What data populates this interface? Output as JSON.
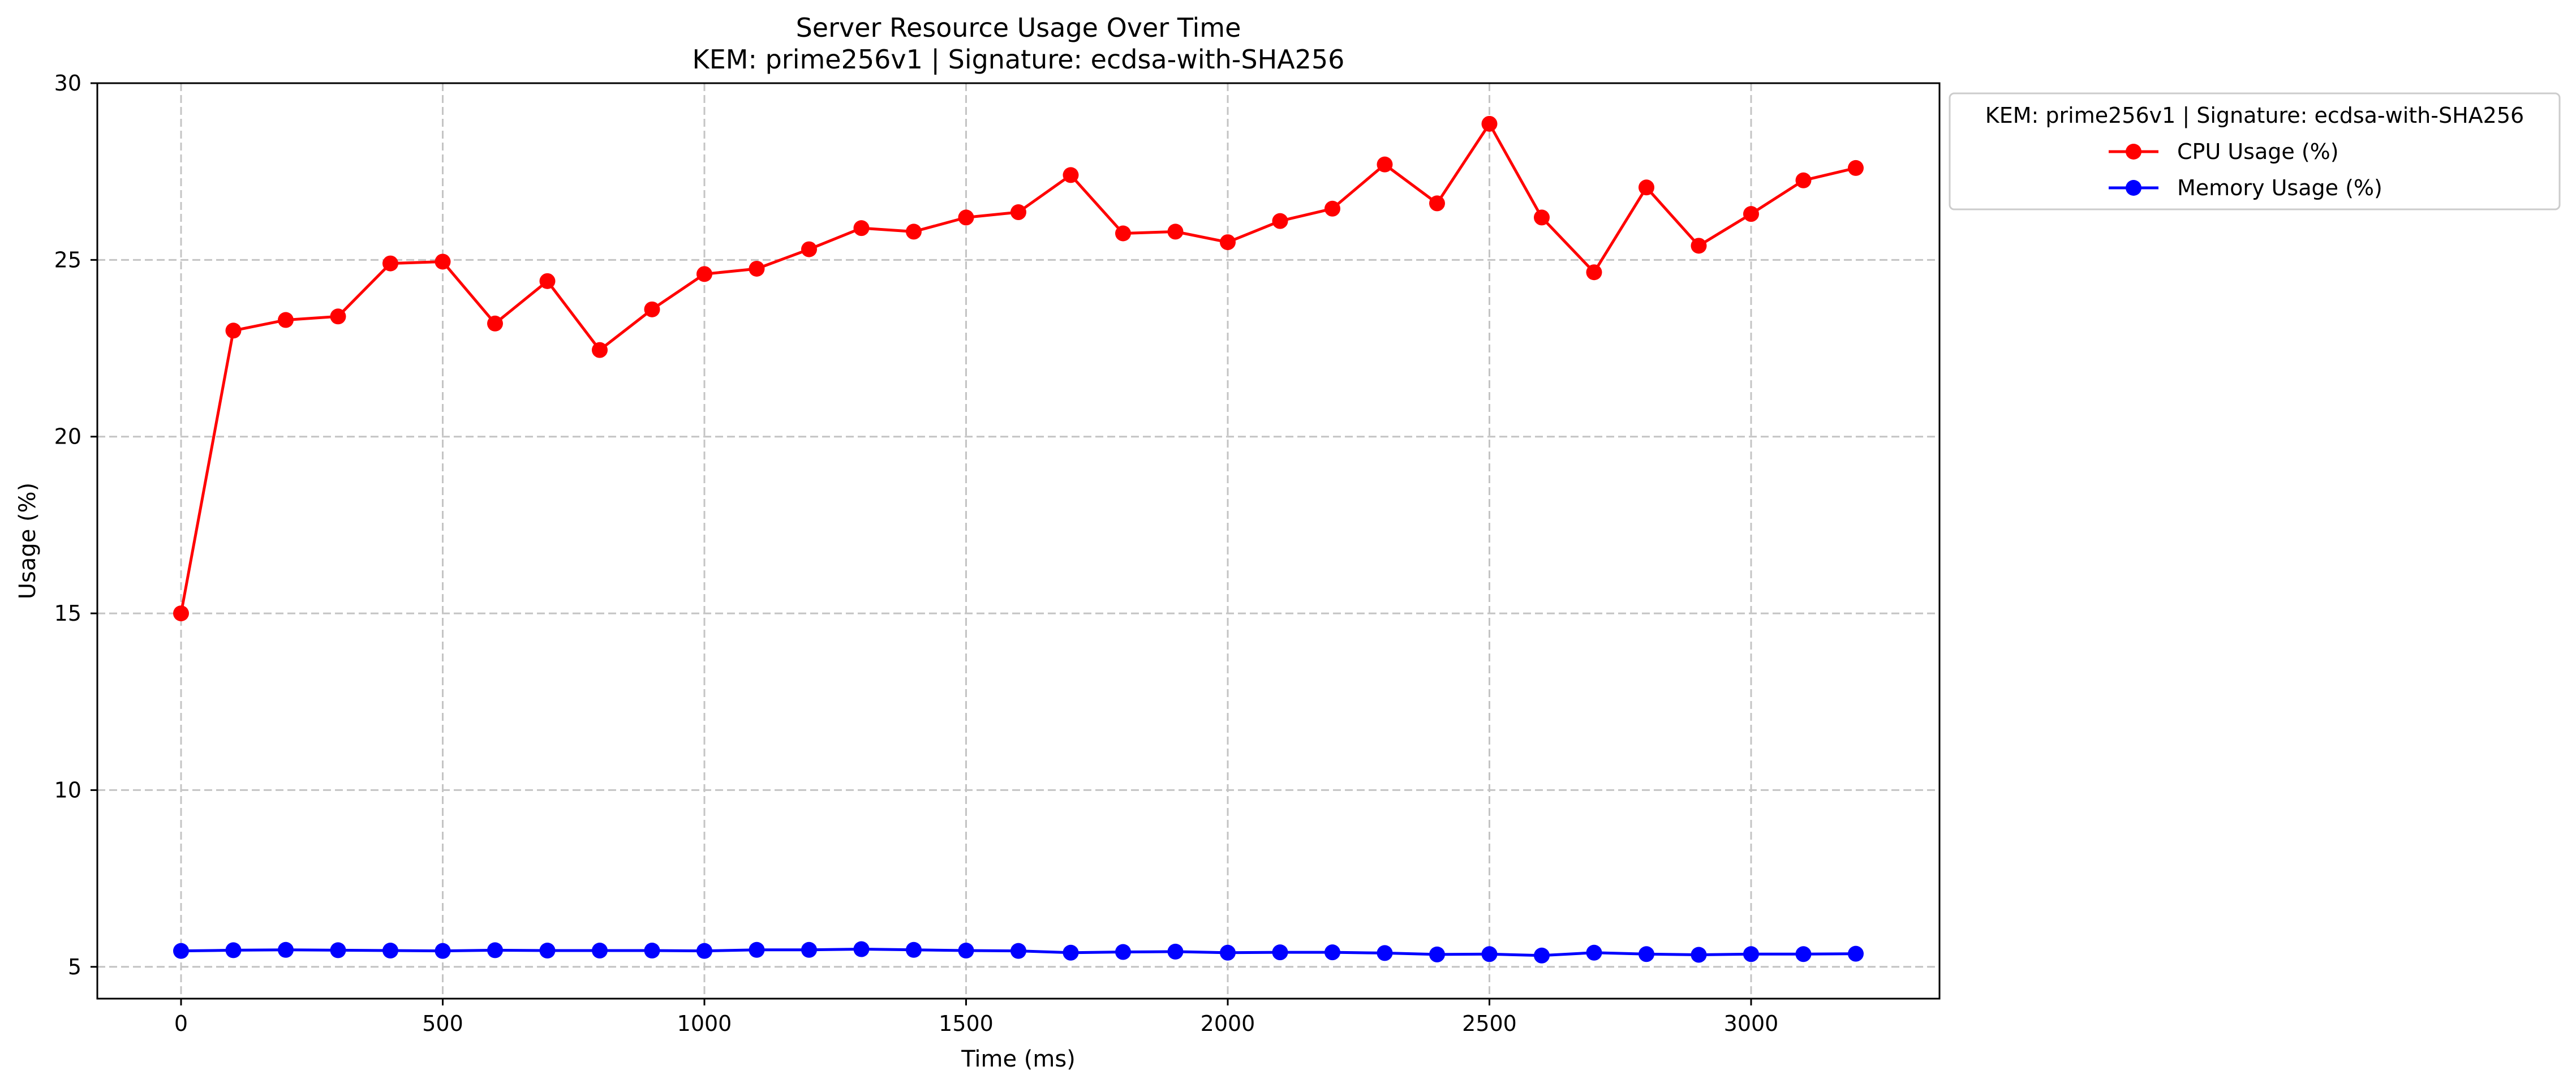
{
  "chart_data": {
    "type": "line",
    "title": "Server Resource Usage Over Time",
    "subtitle": "KEM: prime256v1 | Signature: ecdsa-with-SHA256",
    "xlabel": "Time (ms)",
    "ylabel": "Usage (%)",
    "xlim": [
      -160,
      3360
    ],
    "ylim": [
      4.1,
      30
    ],
    "xticks": [
      0,
      500,
      1000,
      1500,
      2000,
      2500,
      3000
    ],
    "yticks": [
      5,
      10,
      15,
      20,
      25,
      30
    ],
    "grid": true,
    "legend": {
      "title": "KEM: prime256v1 | Signature: ecdsa-with-SHA256",
      "placement": "outside-top-right"
    },
    "x": [
      0,
      100,
      200,
      300,
      400,
      500,
      600,
      700,
      800,
      900,
      1000,
      1100,
      1200,
      1300,
      1400,
      1500,
      1600,
      1700,
      1800,
      1900,
      2000,
      2100,
      2200,
      2300,
      2400,
      2500,
      2600,
      2700,
      2800,
      2900,
      3000,
      3100,
      3200
    ],
    "series": [
      {
        "name": "CPU Usage (%)",
        "color": "#ff0000",
        "marker": "circle",
        "values": [
          15.0,
          23.0,
          23.3,
          23.4,
          24.9,
          24.95,
          23.2,
          24.4,
          22.45,
          23.6,
          24.6,
          24.75,
          25.3,
          25.9,
          25.8,
          26.2,
          26.35,
          27.4,
          25.75,
          25.8,
          25.5,
          26.1,
          26.45,
          27.7,
          26.6,
          28.85,
          26.2,
          24.65,
          27.05,
          25.4,
          26.3,
          27.25,
          27.6
        ]
      },
      {
        "name": "Memory Usage (%)",
        "color": "#0000ff",
        "marker": "circle",
        "values": [
          5.45,
          5.47,
          5.48,
          5.47,
          5.46,
          5.45,
          5.47,
          5.46,
          5.46,
          5.46,
          5.45,
          5.48,
          5.48,
          5.5,
          5.48,
          5.46,
          5.45,
          5.4,
          5.42,
          5.43,
          5.4,
          5.41,
          5.41,
          5.39,
          5.35,
          5.36,
          5.32,
          5.4,
          5.36,
          5.34,
          5.36,
          5.36,
          5.37
        ]
      }
    ]
  }
}
